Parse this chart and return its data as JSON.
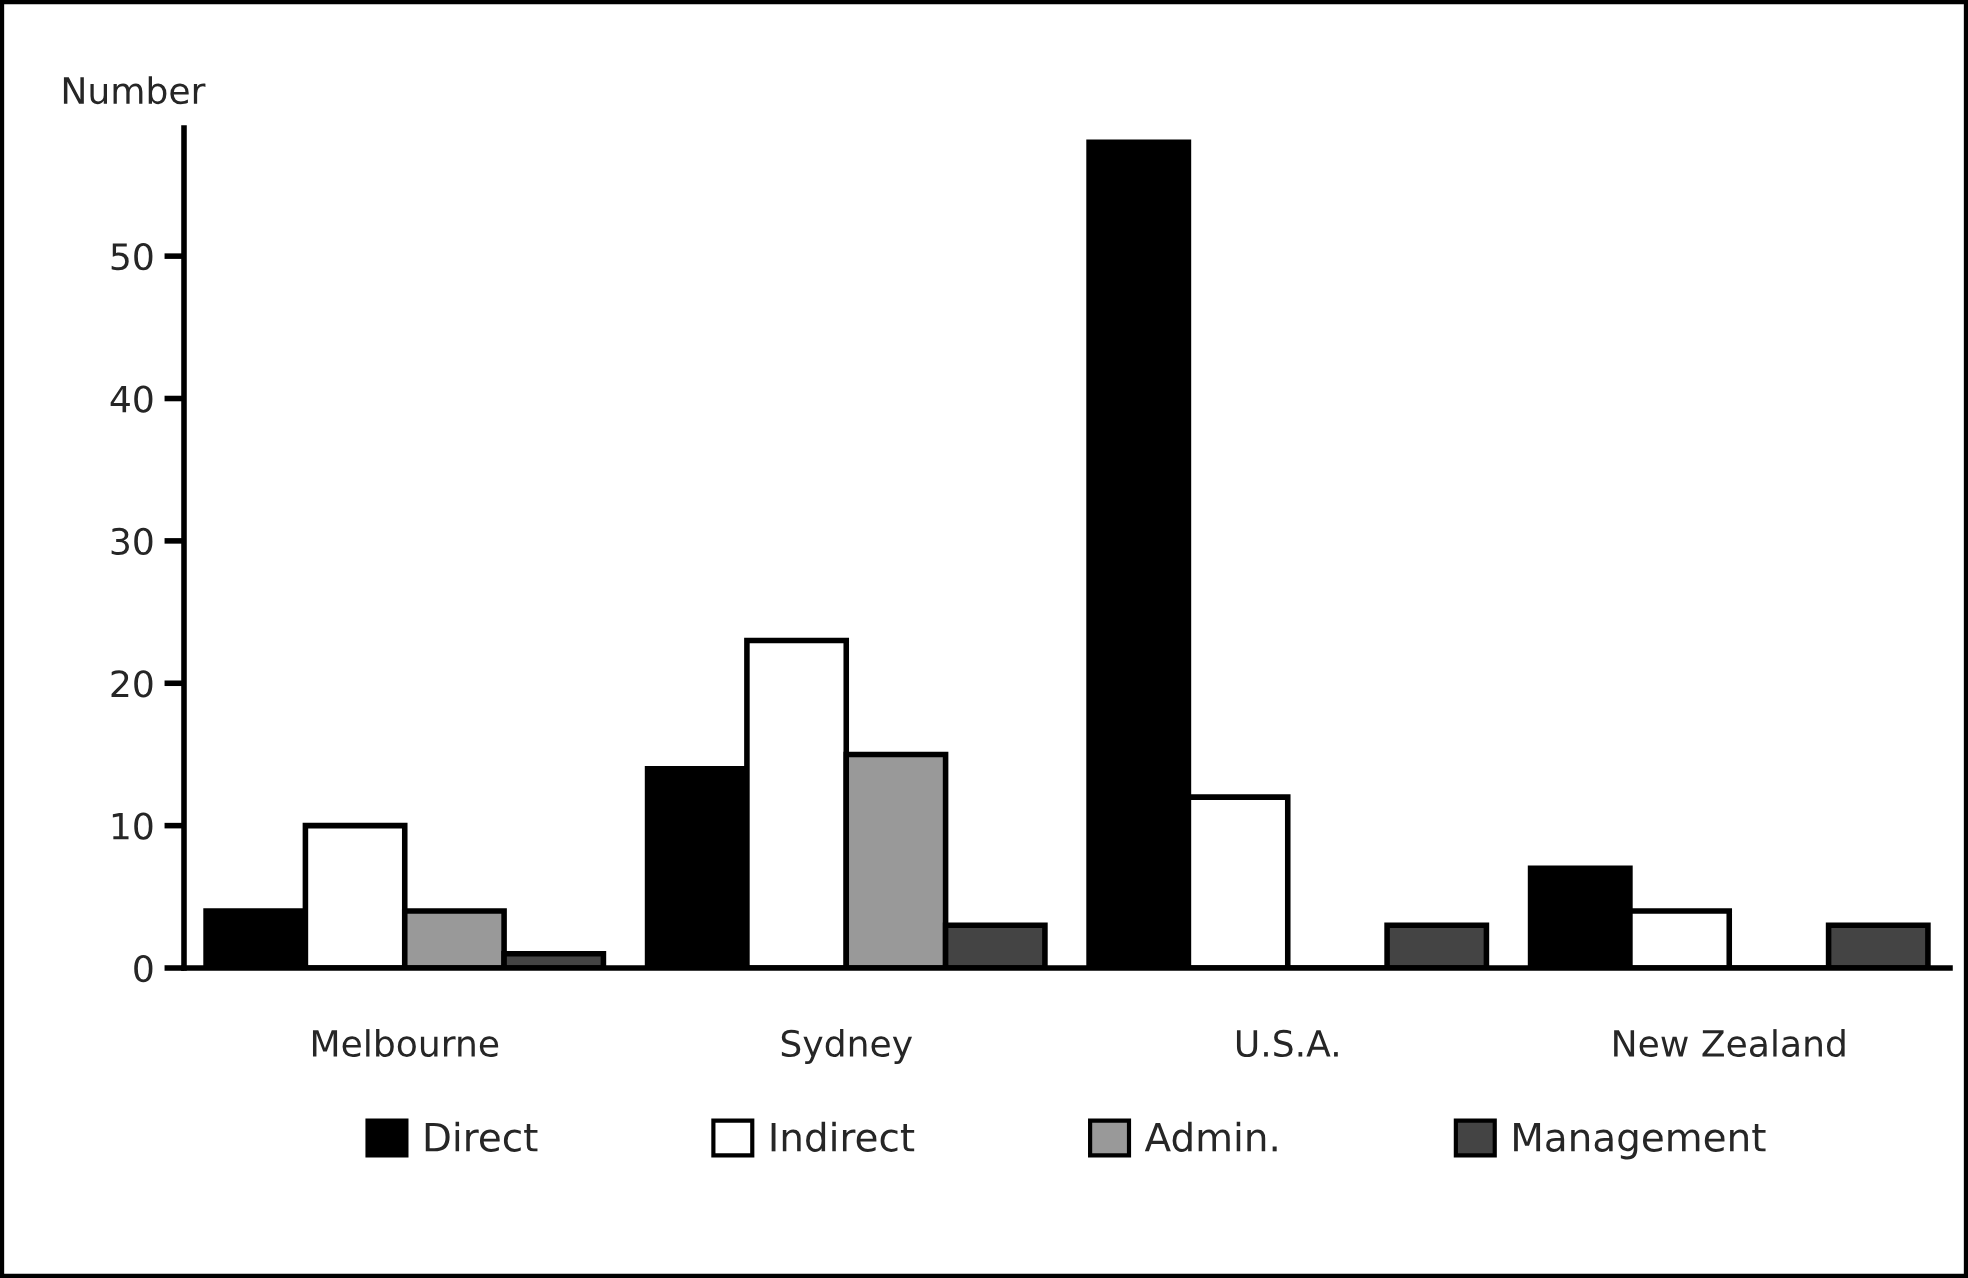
{
  "chart_data": {
    "type": "bar",
    "ylabel": "Number",
    "categories": [
      "Melbourne",
      "Sydney",
      "U.S.A.",
      "New Zealand"
    ],
    "series": [
      {
        "name": "Direct",
        "color": "#000000",
        "values": [
          4,
          14,
          58,
          7
        ]
      },
      {
        "name": "Indirect",
        "color": "#ffffff",
        "values": [
          10,
          23,
          12,
          4
        ]
      },
      {
        "name": "Admin.",
        "color": "#999999",
        "values": [
          4,
          15,
          0,
          0
        ]
      },
      {
        "name": "Management",
        "color": "#444444",
        "values": [
          1,
          3,
          3,
          3
        ]
      }
    ],
    "ylim": [
      0,
      59
    ],
    "yticks": [
      0,
      10,
      20,
      30,
      40,
      50
    ],
    "grid": false,
    "legend": "bottom"
  }
}
